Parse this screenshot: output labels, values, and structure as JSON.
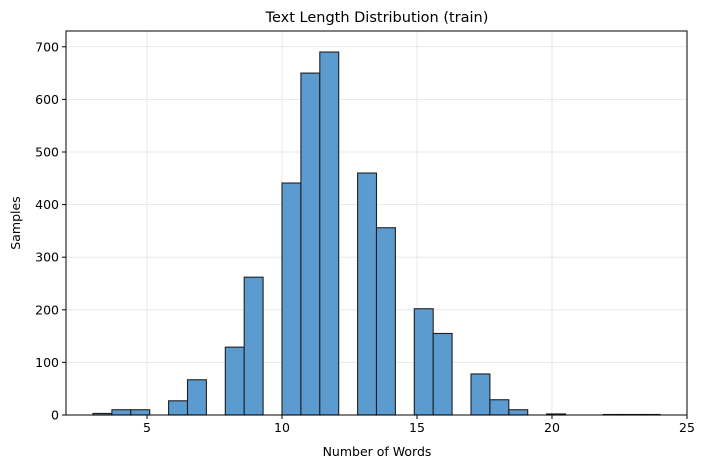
{
  "chart_data": {
    "type": "bar",
    "title": "Text Length Distribution (train)",
    "xlabel": "Number of Words",
    "ylabel": "Samples",
    "xlim": [
      2.0,
      25.0
    ],
    "ylim": [
      0,
      730
    ],
    "x_ticks": [
      5,
      10,
      15,
      20,
      25
    ],
    "y_ticks": [
      0,
      100,
      200,
      300,
      400,
      500,
      600,
      700
    ],
    "grid": true,
    "bar_color": "#5b9bd0",
    "edge_color": "#1f1f1f",
    "bins": [
      {
        "x0": 3.0,
        "x1": 3.7,
        "value": 3
      },
      {
        "x0": 3.7,
        "x1": 4.4,
        "value": 10
      },
      {
        "x0": 4.4,
        "x1": 5.1,
        "value": 10
      },
      {
        "x0": 5.1,
        "x1": 5.8,
        "value": 0
      },
      {
        "x0": 5.8,
        "x1": 6.5,
        "value": 27
      },
      {
        "x0": 6.5,
        "x1": 7.2,
        "value": 67
      },
      {
        "x0": 7.2,
        "x1": 7.9,
        "value": 0
      },
      {
        "x0": 7.9,
        "x1": 8.6,
        "value": 129
      },
      {
        "x0": 8.6,
        "x1": 9.3,
        "value": 262
      },
      {
        "x0": 9.3,
        "x1": 10.0,
        "value": 0
      },
      {
        "x0": 10.0,
        "x1": 10.7,
        "value": 441
      },
      {
        "x0": 10.7,
        "x1": 11.4,
        "value": 650
      },
      {
        "x0": 11.4,
        "x1": 12.1,
        "value": 690
      },
      {
        "x0": 12.1,
        "x1": 12.8,
        "value": 0
      },
      {
        "x0": 12.8,
        "x1": 13.5,
        "value": 460
      },
      {
        "x0": 13.5,
        "x1": 14.2,
        "value": 356
      },
      {
        "x0": 14.2,
        "x1": 14.9,
        "value": 0
      },
      {
        "x0": 14.9,
        "x1": 15.6,
        "value": 202
      },
      {
        "x0": 15.6,
        "x1": 16.3,
        "value": 155
      },
      {
        "x0": 16.3,
        "x1": 17.0,
        "value": 0
      },
      {
        "x0": 17.0,
        "x1": 17.7,
        "value": 78
      },
      {
        "x0": 17.7,
        "x1": 18.4,
        "value": 29
      },
      {
        "x0": 18.4,
        "x1": 19.1,
        "value": 10
      },
      {
        "x0": 19.1,
        "x1": 19.8,
        "value": 0
      },
      {
        "x0": 19.8,
        "x1": 20.5,
        "value": 2
      },
      {
        "x0": 20.5,
        "x1": 21.2,
        "value": 0
      },
      {
        "x0": 21.2,
        "x1": 21.9,
        "value": 0
      },
      {
        "x0": 21.9,
        "x1": 22.6,
        "value": 1
      },
      {
        "x0": 22.6,
        "x1": 23.3,
        "value": 1
      },
      {
        "x0": 23.3,
        "x1": 24.0,
        "value": 1
      }
    ]
  }
}
